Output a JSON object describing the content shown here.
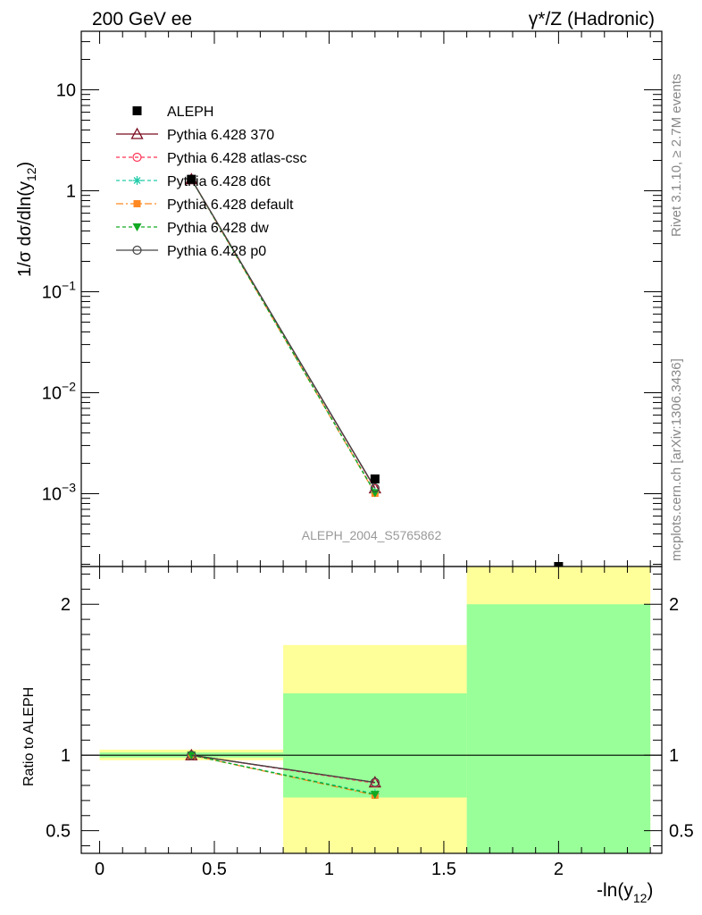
{
  "header": {
    "left": "200 GeV ee",
    "right": "γ*/Z (Hadronic)"
  },
  "side": {
    "rivet": "Rivet 3.1.10, ≥ 2.7M events",
    "mcplots": "mcplots.cern.ch [arXiv:1306.3436]"
  },
  "analysis_id": "ALEPH_2004_S5765862",
  "chart_data": [
    {
      "type": "line",
      "panel": "main",
      "ylabel": "1/σ  dσ/dln(y12)",
      "yscale": "log",
      "xlim": [
        -0.08,
        2.45
      ],
      "ylim": [
        0.00019,
        38
      ],
      "ytick_labels": [
        "10",
        "1",
        "10^-1",
        "10^-2",
        "10^-3"
      ],
      "ytick_values": [
        10,
        1,
        0.1,
        0.01,
        0.001
      ],
      "reference": {
        "name": "ALEPH",
        "x": [
          0.4,
          1.2,
          2.0
        ],
        "y": [
          1.3,
          0.0014,
          0.00019
        ]
      },
      "series": [
        {
          "name": "Pythia 6.428 370",
          "color": "#7a0a1e",
          "dash": "",
          "marker": "triangle-open",
          "x": [
            0.4,
            1.2
          ],
          "y": [
            1.3,
            0.00113
          ]
        },
        {
          "name": "Pythia 6.428 atlas-csc",
          "color": "#ff3355",
          "dash": "4,3",
          "marker": "circle-open",
          "x": [
            0.4,
            1.2
          ],
          "y": [
            1.3,
            0.00112
          ]
        },
        {
          "name": "Pythia 6.428 d6t",
          "color": "#22ccaa",
          "dash": "4,3",
          "marker": "star",
          "x": [
            0.4,
            1.2
          ],
          "y": [
            1.3,
            0.00103
          ]
        },
        {
          "name": "Pythia 6.428 default",
          "color": "#ff8822",
          "dash": "8,3,2,3",
          "marker": "square",
          "x": [
            0.4,
            1.2
          ],
          "y": [
            1.3,
            0.00101
          ]
        },
        {
          "name": "Pythia 6.428 dw",
          "color": "#11aa22",
          "dash": "4,3",
          "marker": "triangle-down",
          "x": [
            0.4,
            1.2
          ],
          "y": [
            1.3,
            0.00102
          ]
        },
        {
          "name": "Pythia 6.428 p0",
          "color": "#444444",
          "dash": "",
          "marker": "circle-open",
          "x": [
            0.4,
            1.2
          ],
          "y": [
            1.3,
            0.00114
          ]
        }
      ]
    },
    {
      "type": "line",
      "panel": "ratio",
      "ylabel": "Ratio to ALEPH",
      "xlabel": "-ln(y12)",
      "xlim": [
        -0.08,
        2.45
      ],
      "ylim": [
        0.35,
        2.25
      ],
      "xtick_labels": [
        "0",
        "0.5",
        "1",
        "1.5",
        "2"
      ],
      "xtick_values": [
        0,
        0.5,
        1,
        1.5,
        2
      ],
      "ytick_labels": [
        "0.5",
        "1",
        "2"
      ],
      "ytick_values": [
        0.5,
        1,
        2
      ],
      "bands": [
        {
          "x0": 0.0,
          "x1": 0.8,
          "yellow": [
            0.967,
            1.037
          ],
          "green": [
            0.985,
            1.018
          ]
        },
        {
          "x0": 0.8,
          "x1": 1.6,
          "yellow": [
            0.35,
            1.73
          ],
          "green": [
            0.72,
            1.41
          ]
        },
        {
          "x0": 1.6,
          "x1": 2.4,
          "yellow": [
            0.35,
            2.25
          ],
          "green": [
            0.35,
            2.0
          ]
        }
      ],
      "series": [
        {
          "name": "Pythia 6.428 370",
          "x": [
            0.4,
            1.2
          ],
          "y": [
            1.0,
            0.82
          ]
        },
        {
          "name": "Pythia 6.428 atlas-csc",
          "x": [
            0.4,
            1.2
          ],
          "y": [
            1.0,
            0.815
          ]
        },
        {
          "name": "Pythia 6.428 d6t",
          "x": [
            0.4,
            1.2
          ],
          "y": [
            1.0,
            0.745
          ]
        },
        {
          "name": "Pythia 6.428 default",
          "x": [
            0.4,
            1.2
          ],
          "y": [
            1.0,
            0.735
          ]
        },
        {
          "name": "Pythia 6.428 dw",
          "x": [
            0.4,
            1.2
          ],
          "y": [
            1.0,
            0.74
          ]
        },
        {
          "name": "Pythia 6.428 p0",
          "x": [
            0.4,
            1.2
          ],
          "y": [
            1.0,
            0.82
          ]
        }
      ]
    }
  ]
}
